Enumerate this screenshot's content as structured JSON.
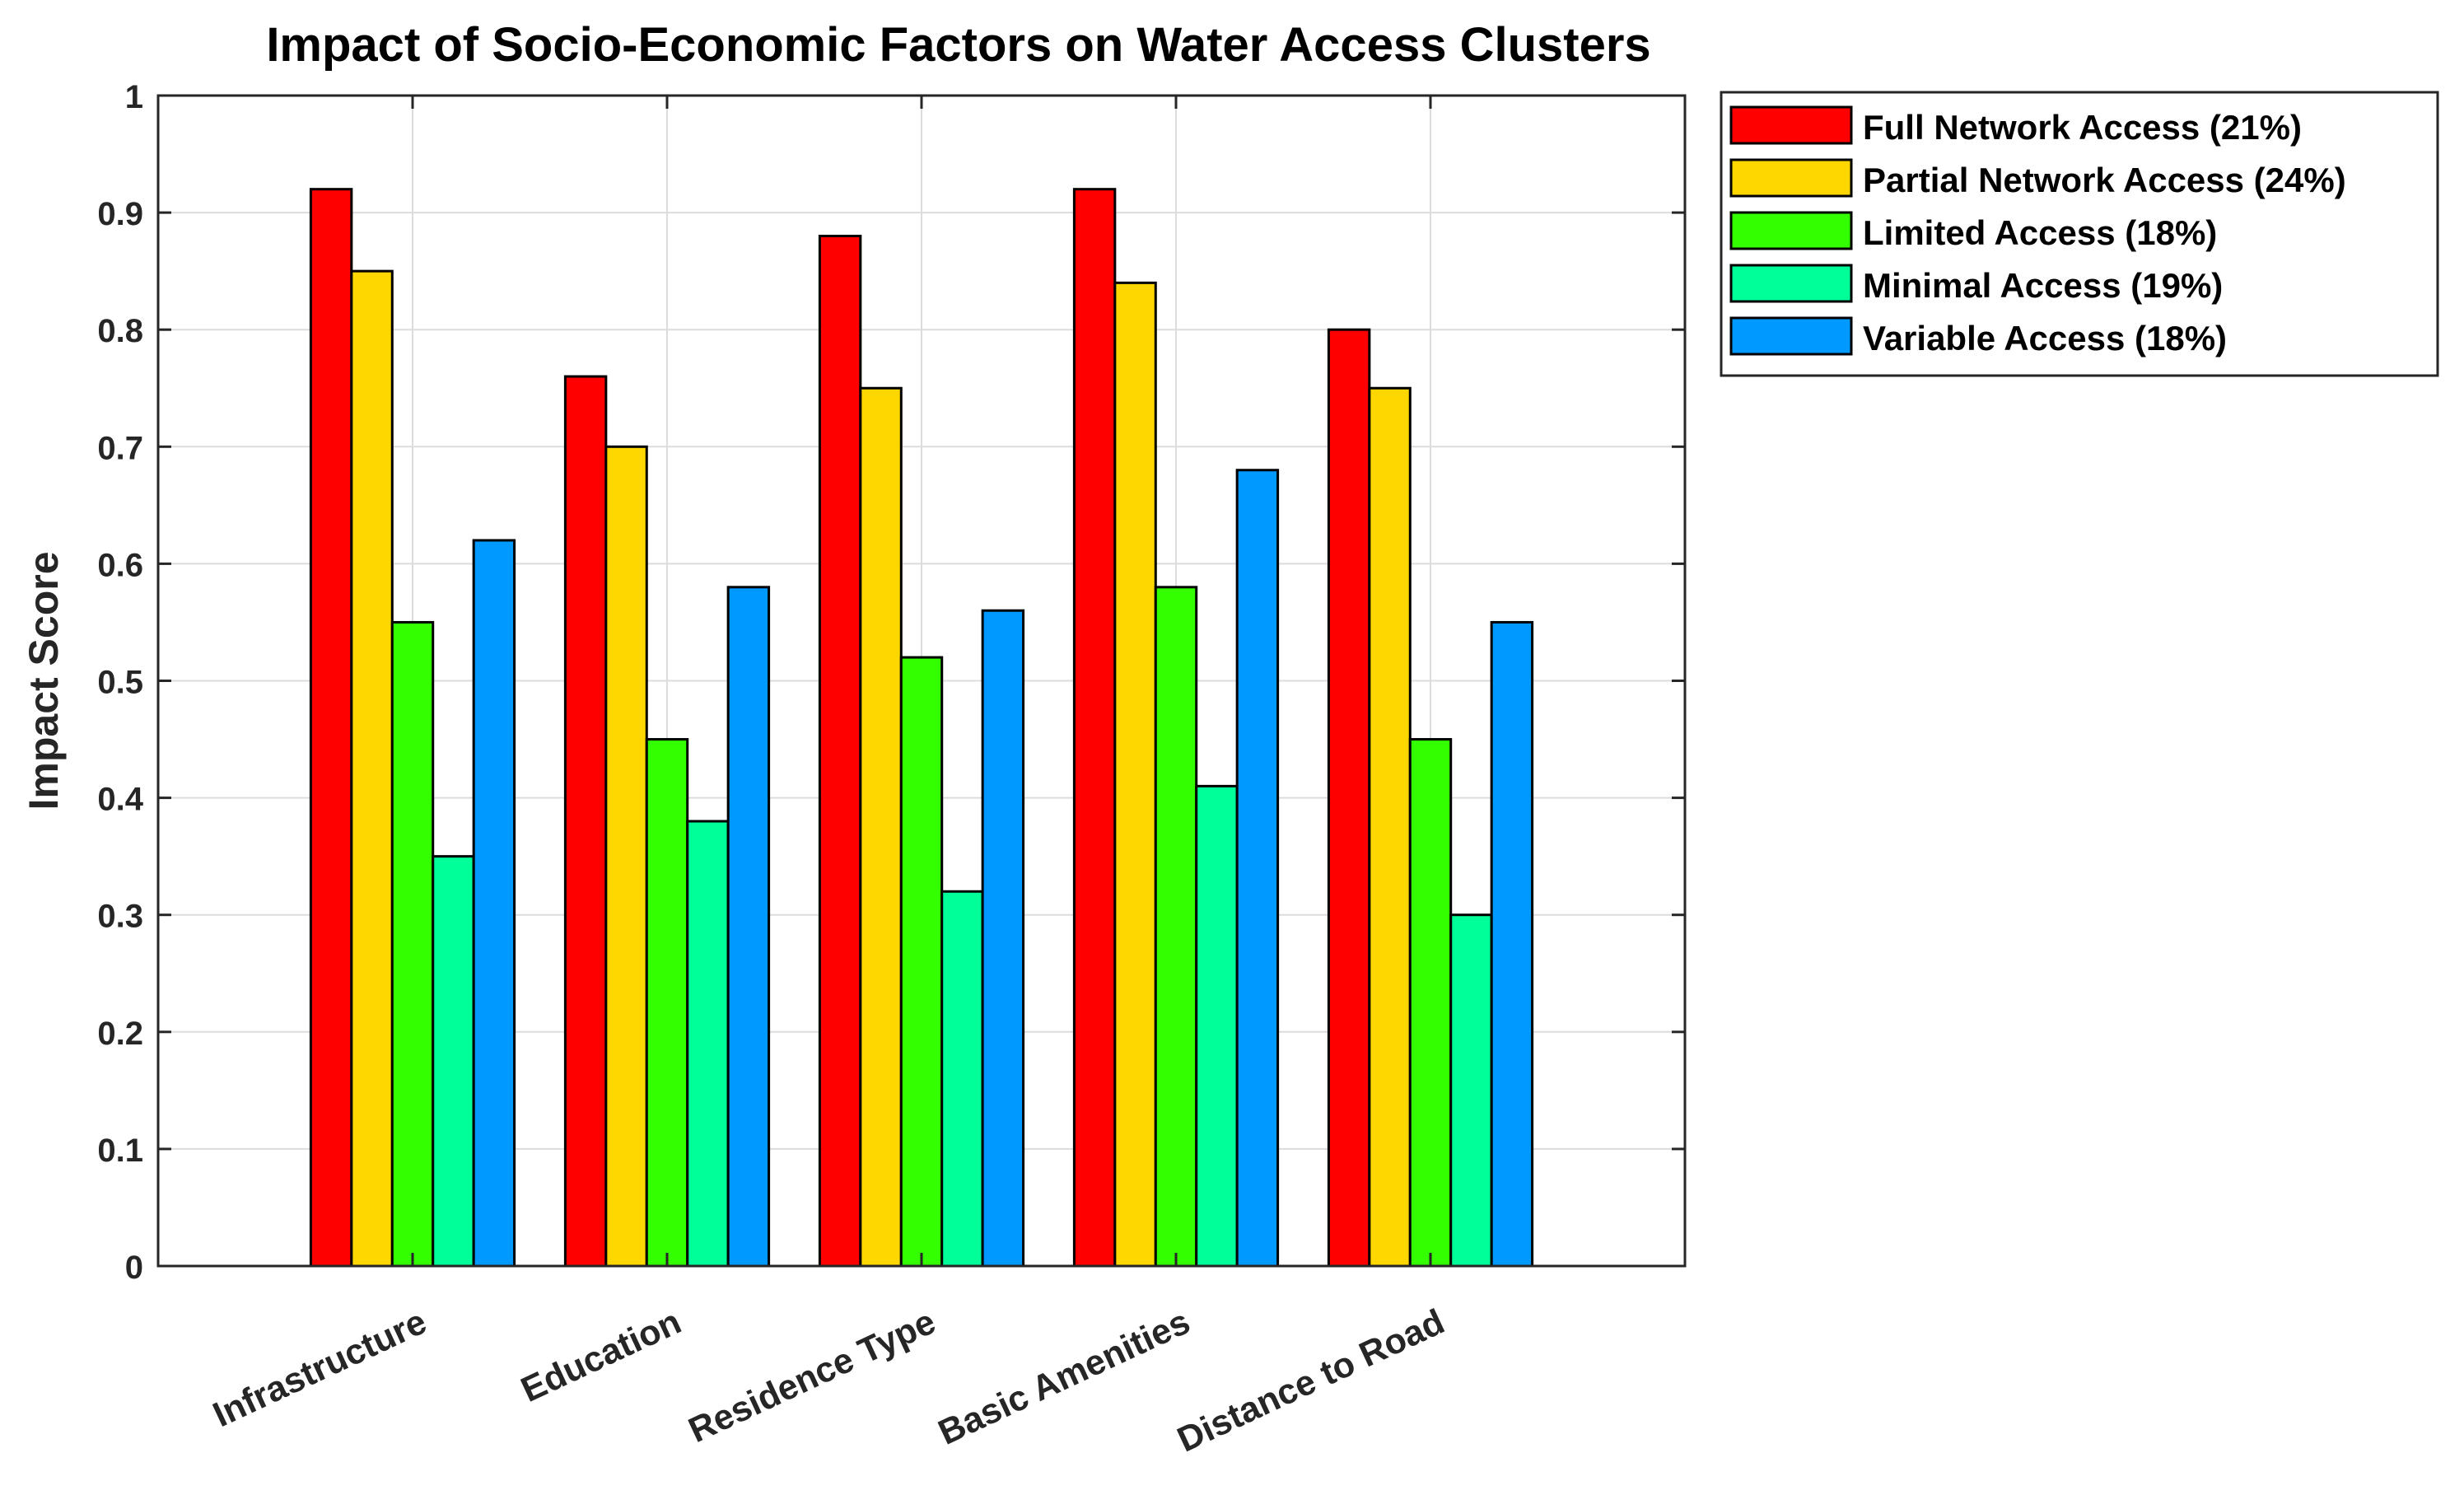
{
  "chart_data": {
    "type": "bar",
    "title": "Impact of Socio-Economic Factors on Water Access Clusters",
    "xlabel": "",
    "ylabel": "Impact Score",
    "ylim": [
      0,
      1
    ],
    "yticks": [
      "0",
      "0.1",
      "0.2",
      "0.3",
      "0.4",
      "0.5",
      "0.6",
      "0.7",
      "0.8",
      "0.9",
      "1"
    ],
    "grid": true,
    "legend_position": "outside-top-right",
    "categories": [
      "Infrastructure",
      "Education",
      "Residence Type",
      "Basic Amenities",
      "Distance to Road"
    ],
    "series": [
      {
        "name": "Full Network Access (21%)",
        "color": "#ff0000",
        "values": [
          0.92,
          0.76,
          0.88,
          0.92,
          0.8
        ]
      },
      {
        "name": "Partial Network Access (24%)",
        "color": "#ffd700",
        "values": [
          0.85,
          0.7,
          0.75,
          0.84,
          0.75
        ]
      },
      {
        "name": "Limited Access (18%)",
        "color": "#33ff00",
        "values": [
          0.55,
          0.45,
          0.52,
          0.58,
          0.45
        ]
      },
      {
        "name": "Minimal Access (19%)",
        "color": "#00ff99",
        "values": [
          0.35,
          0.38,
          0.32,
          0.41,
          0.3
        ]
      },
      {
        "name": "Variable Access (18%)",
        "color": "#0099ff",
        "values": [
          0.62,
          0.58,
          0.56,
          0.68,
          0.55
        ]
      }
    ]
  }
}
